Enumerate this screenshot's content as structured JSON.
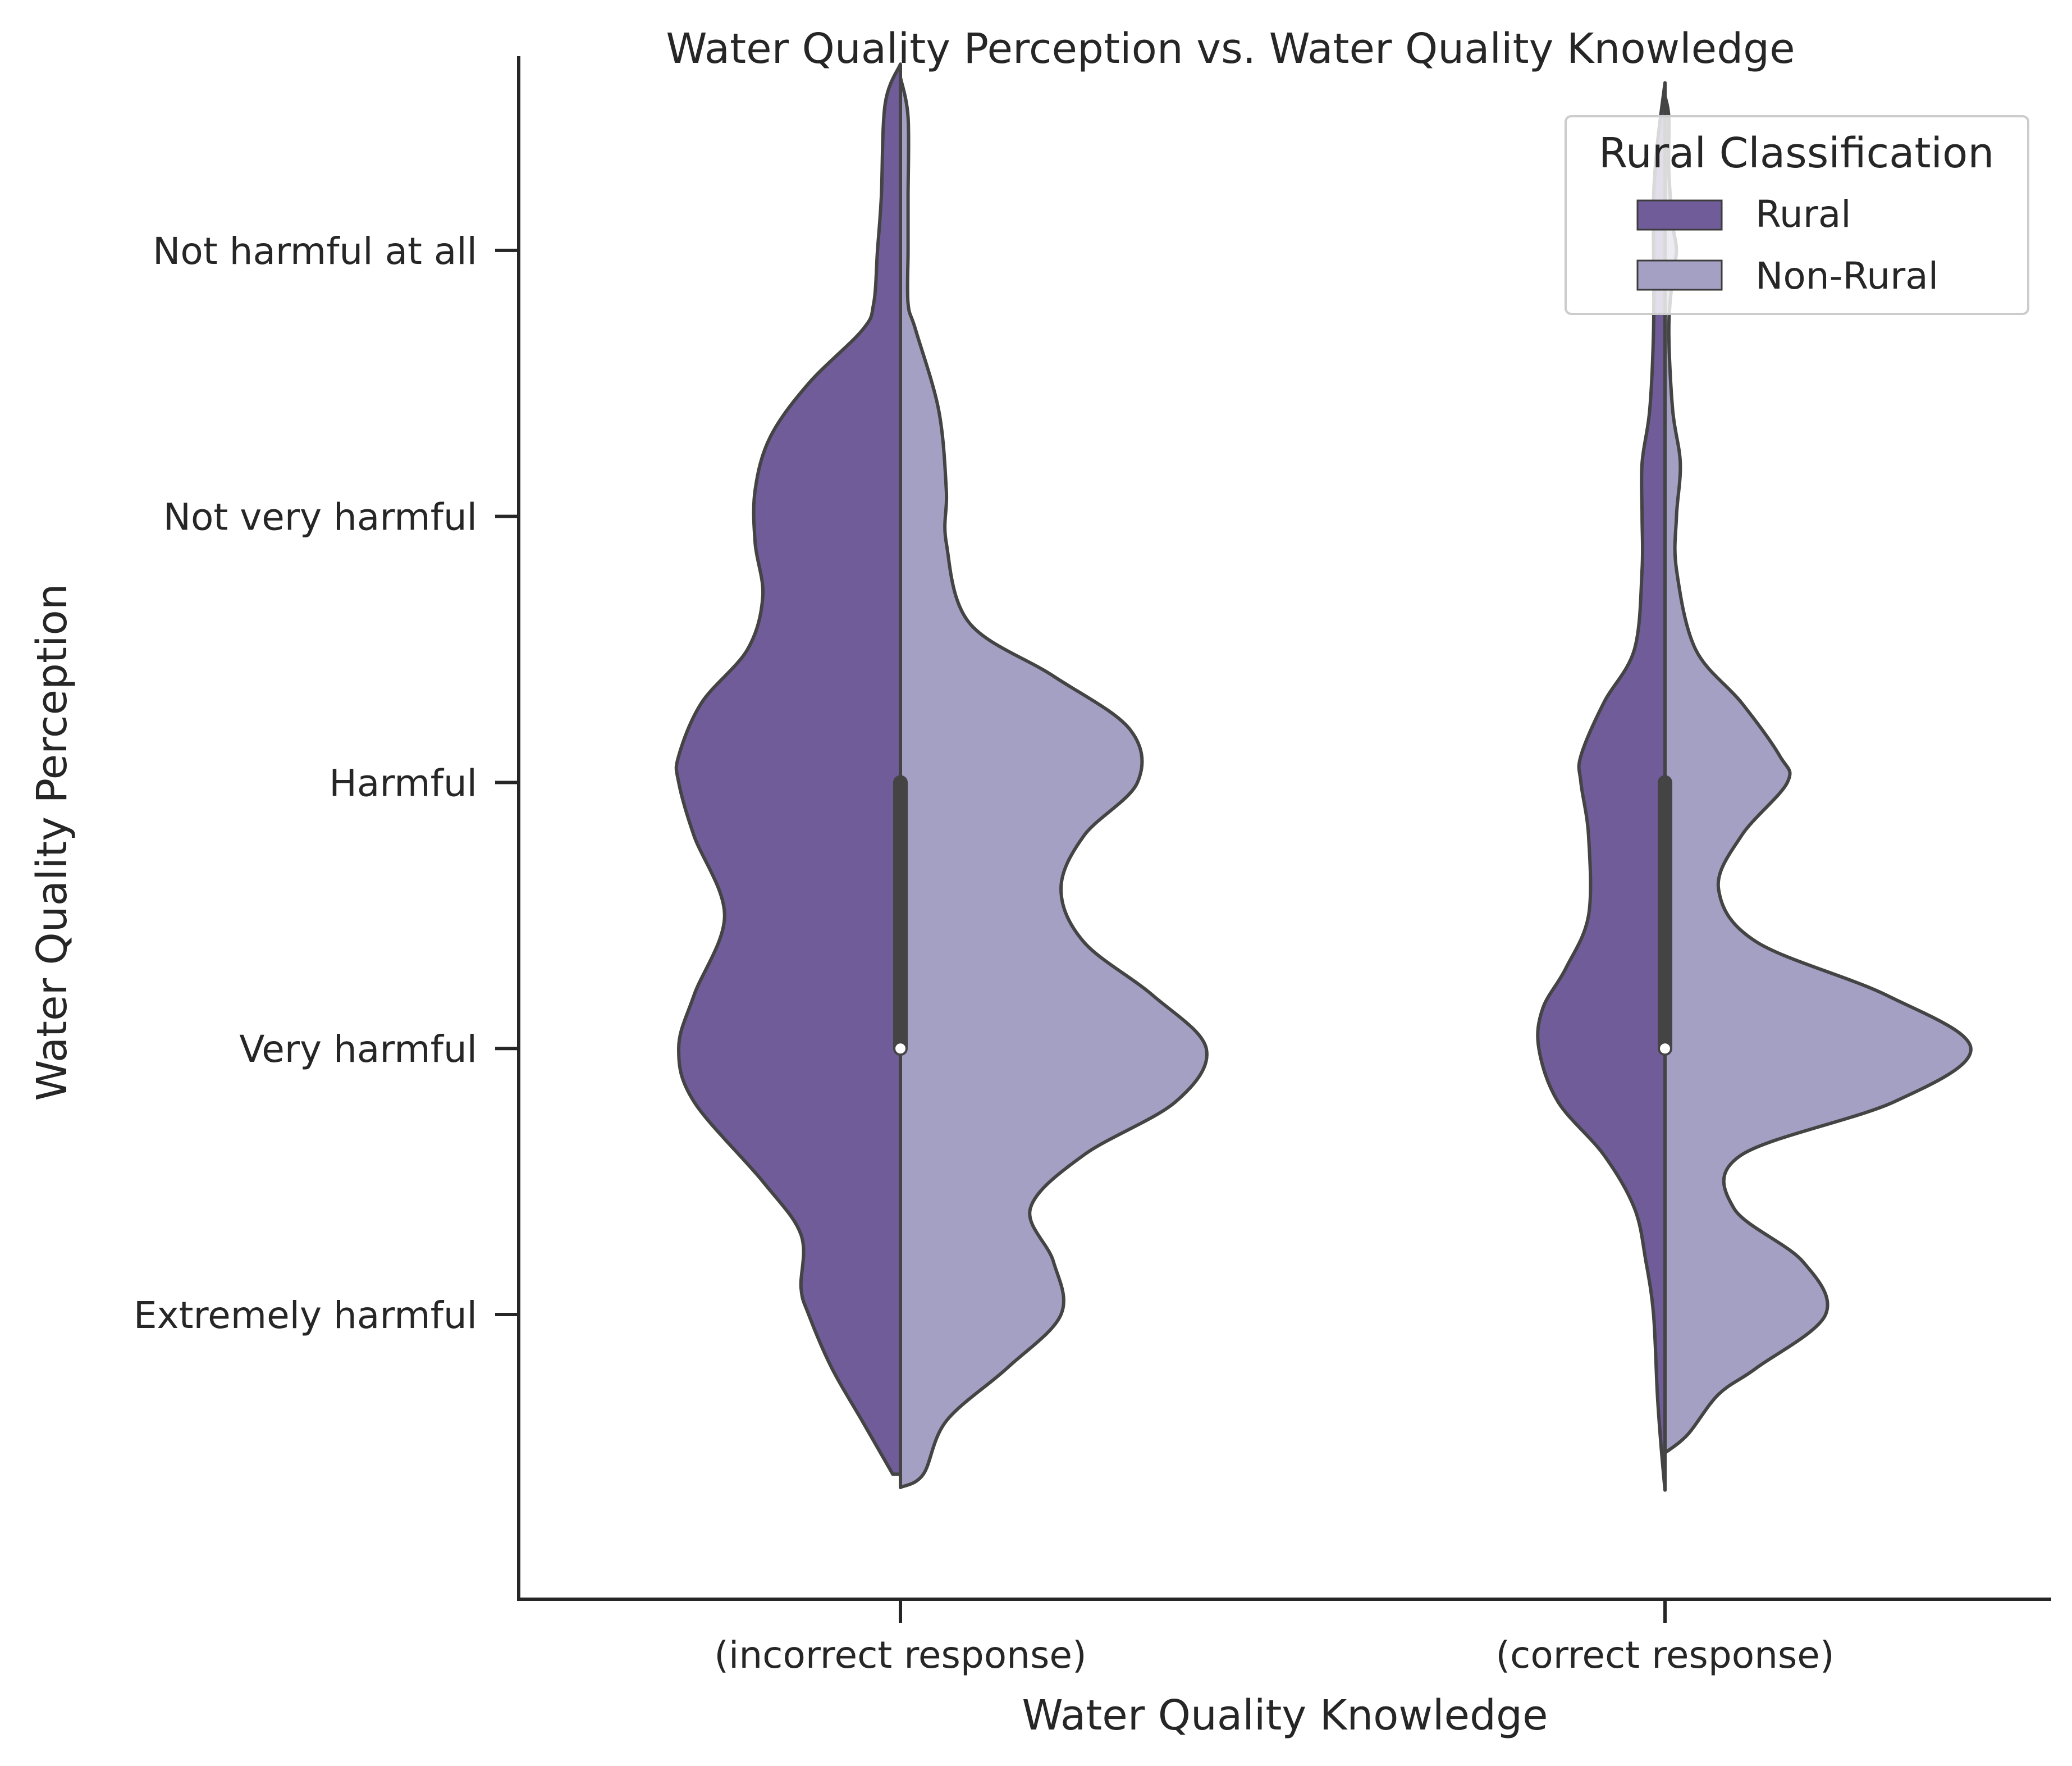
{
  "chart_data": {
    "type": "violin",
    "title": "Water Quality Perception vs. Water Quality Knowledge",
    "xlabel": "Water Quality Knowledge",
    "ylabel": "Water Quality Perception",
    "categories": [
      "(incorrect response)",
      "(correct response)"
    ],
    "y_ticks": [
      {
        "label": "Not harmful at all",
        "value": 1
      },
      {
        "label": "Not very harmful",
        "value": 2
      },
      {
        "label": "Harmful",
        "value": 3
      },
      {
        "label": "Very harmful",
        "value": 4
      },
      {
        "label": "Extremely harmful",
        "value": 5
      }
    ],
    "ylim": [
      0.27,
      6.07
    ],
    "y_inverted": true,
    "legend": {
      "title": "Rural Classification",
      "placement": "top-right",
      "entries": [
        {
          "name": "Rural",
          "color": "#6f5c98"
        },
        {
          "name": "Non-Rural",
          "color": "#a3a0c4"
        }
      ]
    },
    "series": [
      {
        "name": "Rural",
        "color": "#6f5c98",
        "side": "left",
        "violins": [
          {
            "category": "(incorrect response)",
            "max_halfwidth": 0.29,
            "profile": [
              [
                0.3,
                0.0
              ],
              [
                0.45,
                0.02
              ],
              [
                0.8,
                0.025
              ],
              [
                1.0,
                0.03
              ],
              [
                1.2,
                0.035
              ],
              [
                1.3,
                0.05
              ],
              [
                1.5,
                0.12
              ],
              [
                1.7,
                0.17
              ],
              [
                1.9,
                0.19
              ],
              [
                2.1,
                0.19
              ],
              [
                2.3,
                0.18
              ],
              [
                2.5,
                0.2
              ],
              [
                2.7,
                0.26
              ],
              [
                2.9,
                0.29
              ],
              [
                3.0,
                0.29
              ],
              [
                3.2,
                0.27
              ],
              [
                3.5,
                0.23
              ],
              [
                3.8,
                0.27
              ],
              [
                4.0,
                0.29
              ],
              [
                4.2,
                0.27
              ],
              [
                4.5,
                0.18
              ],
              [
                4.7,
                0.13
              ],
              [
                4.9,
                0.13
              ],
              [
                5.0,
                0.12
              ],
              [
                5.2,
                0.09
              ],
              [
                5.4,
                0.05
              ],
              [
                5.6,
                0.01
              ]
            ]
          },
          {
            "category": "(correct response)",
            "max_halfwidth": 0.165,
            "profile": [
              [
                0.37,
                0.0
              ],
              [
                0.6,
                0.01
              ],
              [
                0.8,
                0.015
              ],
              [
                1.0,
                0.015
              ],
              [
                1.3,
                0.015
              ],
              [
                1.6,
                0.02
              ],
              [
                1.8,
                0.03
              ],
              [
                2.0,
                0.03
              ],
              [
                2.2,
                0.03
              ],
              [
                2.5,
                0.04
              ],
              [
                2.7,
                0.08
              ],
              [
                2.9,
                0.11
              ],
              [
                3.0,
                0.11
              ],
              [
                3.2,
                0.1
              ],
              [
                3.5,
                0.1
              ],
              [
                3.7,
                0.13
              ],
              [
                3.85,
                0.16
              ],
              [
                4.0,
                0.165
              ],
              [
                4.2,
                0.14
              ],
              [
                4.4,
                0.08
              ],
              [
                4.6,
                0.04
              ],
              [
                4.8,
                0.025
              ],
              [
                5.0,
                0.015
              ],
              [
                5.3,
                0.01
              ],
              [
                5.5,
                0.005
              ],
              [
                5.66,
                0.0
              ]
            ]
          }
        ]
      },
      {
        "name": "Non-Rural",
        "color": "#a3a0c4",
        "side": "right",
        "violins": [
          {
            "category": "(incorrect response)",
            "max_halfwidth": 0.4,
            "profile": [
              [
                0.35,
                0.0
              ],
              [
                0.5,
                0.01
              ],
              [
                0.8,
                0.01
              ],
              [
                1.0,
                0.01
              ],
              [
                1.2,
                0.01
              ],
              [
                1.3,
                0.02
              ],
              [
                1.6,
                0.05
              ],
              [
                1.9,
                0.06
              ],
              [
                2.1,
                0.06
              ],
              [
                2.4,
                0.09
              ],
              [
                2.6,
                0.2
              ],
              [
                2.8,
                0.3
              ],
              [
                3.0,
                0.31
              ],
              [
                3.2,
                0.24
              ],
              [
                3.4,
                0.21
              ],
              [
                3.6,
                0.24
              ],
              [
                3.8,
                0.33
              ],
              [
                4.0,
                0.4
              ],
              [
                4.2,
                0.36
              ],
              [
                4.4,
                0.24
              ],
              [
                4.6,
                0.17
              ],
              [
                4.8,
                0.2
              ],
              [
                5.0,
                0.21
              ],
              [
                5.2,
                0.14
              ],
              [
                5.4,
                0.06
              ],
              [
                5.6,
                0.03
              ],
              [
                5.65,
                0.0
              ]
            ]
          },
          {
            "category": "(correct response)",
            "max_halfwidth": 0.4,
            "profile": [
              [
                0.42,
                0.0
              ],
              [
                0.5,
                0.005
              ],
              [
                0.7,
                0.005
              ],
              [
                0.9,
                0.01
              ],
              [
                1.0,
                0.015
              ],
              [
                1.1,
                0.01
              ],
              [
                1.3,
                0.005
              ],
              [
                1.6,
                0.01
              ],
              [
                1.8,
                0.02
              ],
              [
                2.0,
                0.015
              ],
              [
                2.2,
                0.015
              ],
              [
                2.5,
                0.04
              ],
              [
                2.7,
                0.1
              ],
              [
                2.9,
                0.15
              ],
              [
                3.0,
                0.16
              ],
              [
                3.2,
                0.1
              ],
              [
                3.4,
                0.07
              ],
              [
                3.6,
                0.12
              ],
              [
                3.8,
                0.29
              ],
              [
                4.0,
                0.4
              ],
              [
                4.2,
                0.3
              ],
              [
                4.4,
                0.1
              ],
              [
                4.6,
                0.09
              ],
              [
                4.8,
                0.18
              ],
              [
                5.0,
                0.21
              ],
              [
                5.2,
                0.12
              ],
              [
                5.3,
                0.07
              ],
              [
                5.45,
                0.03
              ],
              [
                5.52,
                0.0
              ]
            ]
          }
        ]
      }
    ],
    "inner_box": [
      {
        "category": "(incorrect response)",
        "q1": 3,
        "median": 4,
        "q3": 4
      },
      {
        "category": "(correct response)",
        "q1": 3,
        "median": 4,
        "q3": 4
      }
    ],
    "grid": false
  }
}
